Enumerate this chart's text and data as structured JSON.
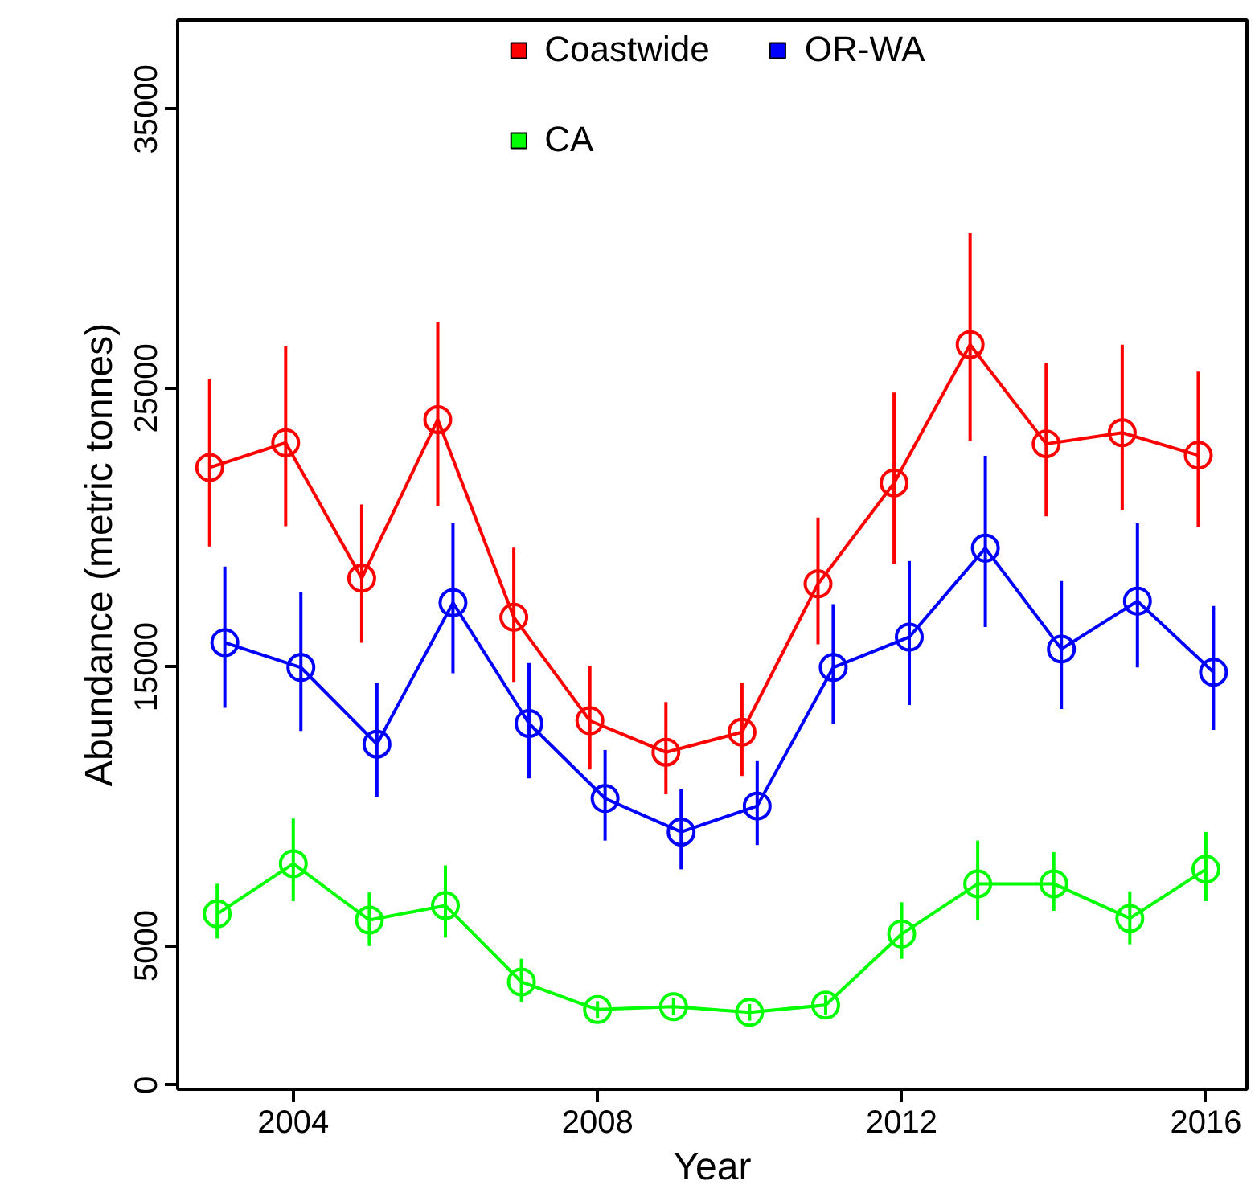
{
  "chart_data": {
    "type": "line",
    "xlabel": "Year",
    "ylabel": "Abundance (metric tonnes)",
    "xlim": [
      2002.48,
      2016.54
    ],
    "ylim": [
      -150,
      38200
    ],
    "xticks": [
      2004,
      2008,
      2012,
      2016
    ],
    "yticks": [
      0,
      5000,
      15000,
      25000,
      35000
    ],
    "grid": false,
    "legend": "top",
    "marker": "circle",
    "line_style": "solid",
    "series": [
      {
        "name": "Coastwide",
        "color": "#ff0000",
        "x": [
          2002.9,
          2003.9,
          2004.9,
          2005.9,
          2006.9,
          2007.9,
          2008.9,
          2009.9,
          2010.9,
          2011.9,
          2012.9,
          2013.9,
          2014.9,
          2015.9
        ],
        "values": [
          22150,
          23040,
          18180,
          23870,
          16780,
          13070,
          11940,
          12660,
          17980,
          21600,
          26560,
          23000,
          23400,
          22590
        ],
        "errors": [
          [
            19320,
            25320
          ],
          [
            20050,
            26500
          ],
          [
            15870,
            20830
          ],
          [
            20770,
            27390
          ],
          [
            14460,
            19280
          ],
          [
            11320,
            15040
          ],
          [
            10430,
            13740
          ],
          [
            11090,
            14440
          ],
          [
            15810,
            20360
          ],
          [
            18700,
            24840
          ],
          [
            23100,
            30560
          ],
          [
            20400,
            25900
          ],
          [
            20620,
            26560
          ],
          [
            20030,
            25590
          ]
        ]
      },
      {
        "name": "OR-WA",
        "color": "#0000ff",
        "x": [
          2003.1,
          2004.1,
          2005.1,
          2006.1,
          2007.1,
          2008.1,
          2009.1,
          2010.1,
          2011.1,
          2012.1,
          2013.1,
          2014.1,
          2015.1,
          2016.1
        ],
        "values": [
          15870,
          14980,
          12230,
          17300,
          12970,
          10280,
          9080,
          10010,
          14980,
          16070,
          19260,
          15640,
          17360,
          14810
        ],
        "errors": [
          [
            13530,
            18600
          ],
          [
            12700,
            17670
          ],
          [
            10320,
            14440
          ],
          [
            14770,
            20150
          ],
          [
            11000,
            15140
          ],
          [
            8770,
            12020
          ],
          [
            7740,
            10630
          ],
          [
            8610,
            11620
          ],
          [
            12970,
            17250
          ],
          [
            13630,
            18800
          ],
          [
            16430,
            22570
          ],
          [
            13490,
            18080
          ],
          [
            14980,
            20150
          ],
          [
            12740,
            17190
          ]
        ]
      },
      {
        "name": "CA",
        "color": "#00ff00",
        "x": [
          2003,
          2004,
          2005,
          2006,
          2007,
          2008,
          2009,
          2010,
          2011,
          2012,
          2013,
          2014,
          2015,
          2016
        ],
        "values": [
          6140,
          7940,
          5920,
          6440,
          3700,
          2710,
          2810,
          2610,
          2870,
          5420,
          7220,
          7220,
          5980,
          7740
        ],
        "errors": [
          [
            5260,
            7220
          ],
          [
            6600,
            9560
          ],
          [
            4990,
            6910
          ],
          [
            5290,
            7880
          ],
          [
            2980,
            4530
          ],
          [
            2410,
            3010
          ],
          [
            2510,
            3110
          ],
          [
            2310,
            2910
          ],
          [
            2520,
            3220
          ],
          [
            4530,
            6560
          ],
          [
            5920,
            8770
          ],
          [
            6250,
            8360
          ],
          [
            5050,
            6950
          ],
          [
            6600,
            9080
          ]
        ]
      }
    ]
  }
}
